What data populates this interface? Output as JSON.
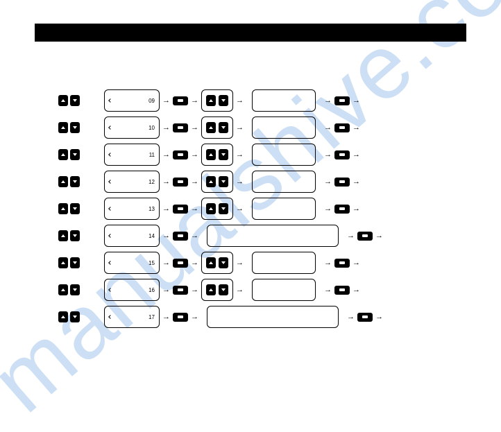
{
  "watermark": "manualshive.com",
  "rows": [
    {
      "num": "09",
      "hasMiddleButtons": true,
      "wide": false
    },
    {
      "num": "10",
      "hasMiddleButtons": true,
      "wide": false
    },
    {
      "num": "11",
      "hasMiddleButtons": true,
      "wide": false
    },
    {
      "num": "12",
      "hasMiddleButtons": true,
      "wide": false
    },
    {
      "num": "13",
      "hasMiddleButtons": true,
      "wide": false
    },
    {
      "num": "14",
      "hasMiddleButtons": false,
      "wide": true
    },
    {
      "num": "15",
      "hasMiddleButtons": true,
      "wide": false
    },
    {
      "num": "16",
      "hasMiddleButtons": true,
      "wide": false
    },
    {
      "num": "17",
      "hasMiddleButtons": false,
      "wide": true
    }
  ],
  "colors": {
    "button_bg": "#000000",
    "button_fg": "#ffffff",
    "border": "#000000",
    "watermark": "#4a90d9",
    "page_bg": "#ffffff"
  }
}
